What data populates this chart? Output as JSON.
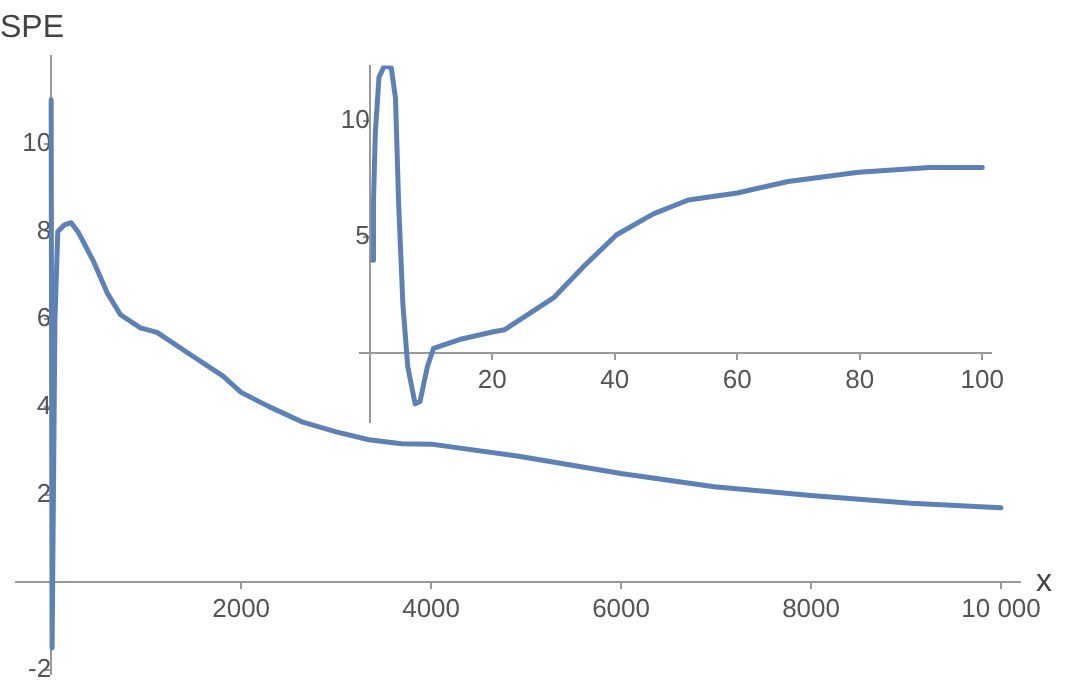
{
  "chart_data": [
    {
      "type": "line",
      "xlabel": "x",
      "ylabel": "SPE",
      "marker": "none",
      "color": "#5e81b5",
      "x": [
        0,
        10,
        40,
        70,
        140,
        210,
        280,
        330,
        450,
        590,
        730,
        940,
        1115,
        1460,
        1810,
        2000,
        2300,
        2650,
        3000,
        3345,
        3690,
        4000,
        4908,
        6000,
        6980,
        8000,
        9050,
        10000
      ],
      "values": [
        11.0,
        -1.5,
        6.0,
        8.0,
        8.15,
        8.2,
        8.0,
        7.8,
        7.3,
        6.6,
        6.1,
        5.8,
        5.7,
        5.2,
        4.7,
        4.33,
        4.0,
        3.65,
        3.43,
        3.25,
        3.16,
        3.15,
        2.88,
        2.48,
        2.18,
        1.98,
        1.8,
        1.7
      ],
      "xlim": [
        -370,
        10200
      ],
      "ylim": [
        -2.1,
        12
      ],
      "xticks": [
        2000,
        4000,
        6000,
        8000,
        {
          "value": 10000,
          "label": "10 000"
        }
      ],
      "yticks": [
        -2,
        2,
        4,
        6,
        8,
        10
      ]
    },
    {
      "type": "line",
      "marker": "none",
      "color": "#5e81b5",
      "x": [
        0.5,
        0.6,
        0.9,
        1.5,
        2.4,
        3.5,
        4.2,
        4.7,
        5.4,
        6.2,
        7.4,
        8.2,
        9.4,
        10.4,
        15,
        20,
        22,
        30.1,
        34.8,
        40.3,
        46.3,
        52,
        60,
        68.3,
        79.8,
        91.4,
        100
      ],
      "values": [
        4.0,
        6.5,
        9.5,
        11.9,
        12.4,
        12.3,
        11.0,
        6.5,
        2.1,
        -0.6,
        -2.2,
        -2.1,
        -0.6,
        0.2,
        0.6,
        0.9,
        1.0,
        2.4,
        3.7,
        5.1,
        6.0,
        6.6,
        6.9,
        7.4,
        7.8,
        8.0,
        8.0
      ],
      "xlim": [
        -1.6,
        101.5
      ],
      "ylim": [
        -3.0,
        12.4
      ],
      "xticks": [
        20,
        40,
        60,
        80,
        100
      ],
      "yticks": [
        5,
        10
      ]
    }
  ]
}
